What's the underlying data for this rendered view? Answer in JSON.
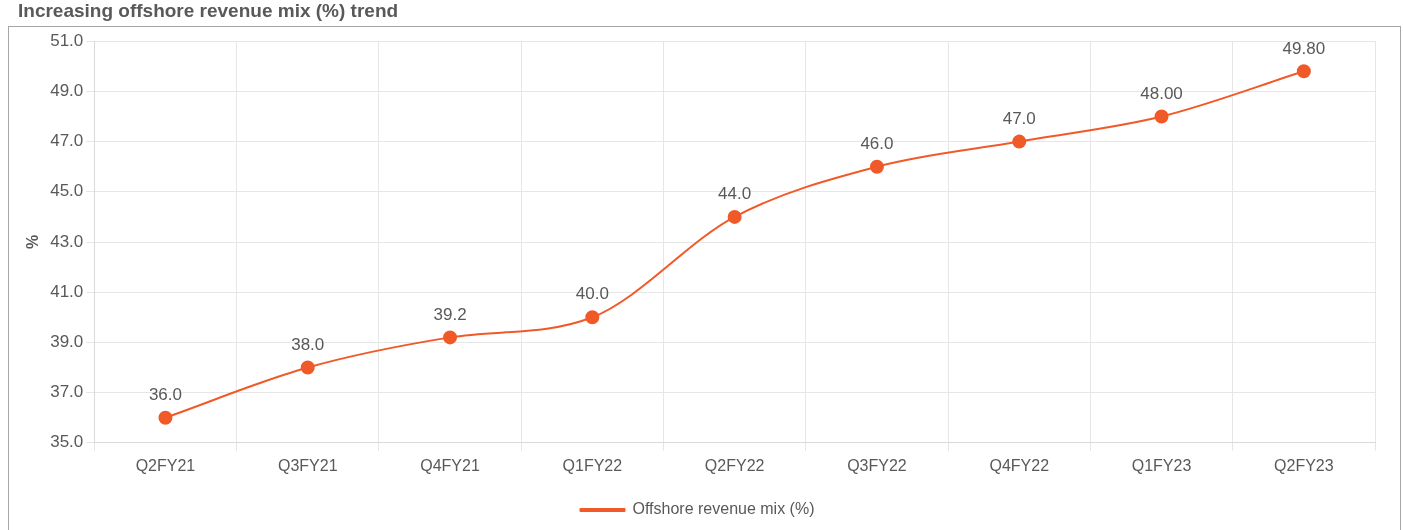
{
  "chart_data": {
    "type": "line",
    "title": "Increasing offshore revenue mix (%) trend",
    "ylabel": "%",
    "categories": [
      "Q2FY21",
      "Q3FY21",
      "Q4FY21",
      "Q1FY22",
      "Q2FY22",
      "Q3FY22",
      "Q4FY22",
      "Q1FY23",
      "Q2FY23"
    ],
    "series": [
      {
        "name": "Offshore revenue mix (%)",
        "color": "#f05a28",
        "values": [
          36.0,
          38.0,
          39.2,
          40.0,
          44.0,
          46.0,
          47.0,
          48.0,
          49.8
        ],
        "value_labels": [
          "36.0",
          "38.0",
          "39.2",
          "40.0",
          "44.0",
          "46.0",
          "47.0",
          "48.00",
          "49.80"
        ]
      }
    ],
    "ylim": [
      35,
      51
    ],
    "yticks": [
      {
        "value": 35,
        "label": "35.0"
      },
      {
        "value": 37,
        "label": "37.0"
      },
      {
        "value": 39,
        "label": "39.0"
      },
      {
        "value": 41,
        "label": "41.0"
      },
      {
        "value": 43,
        "label": "43.0"
      },
      {
        "value": 45,
        "label": "45.0"
      },
      {
        "value": 47,
        "label": "47.0"
      },
      {
        "value": 49,
        "label": "49.0"
      },
      {
        "value": 51,
        "label": "51.0"
      }
    ],
    "grid": true,
    "legend": "bottom",
    "marker": "circle",
    "line_style": "solid"
  }
}
